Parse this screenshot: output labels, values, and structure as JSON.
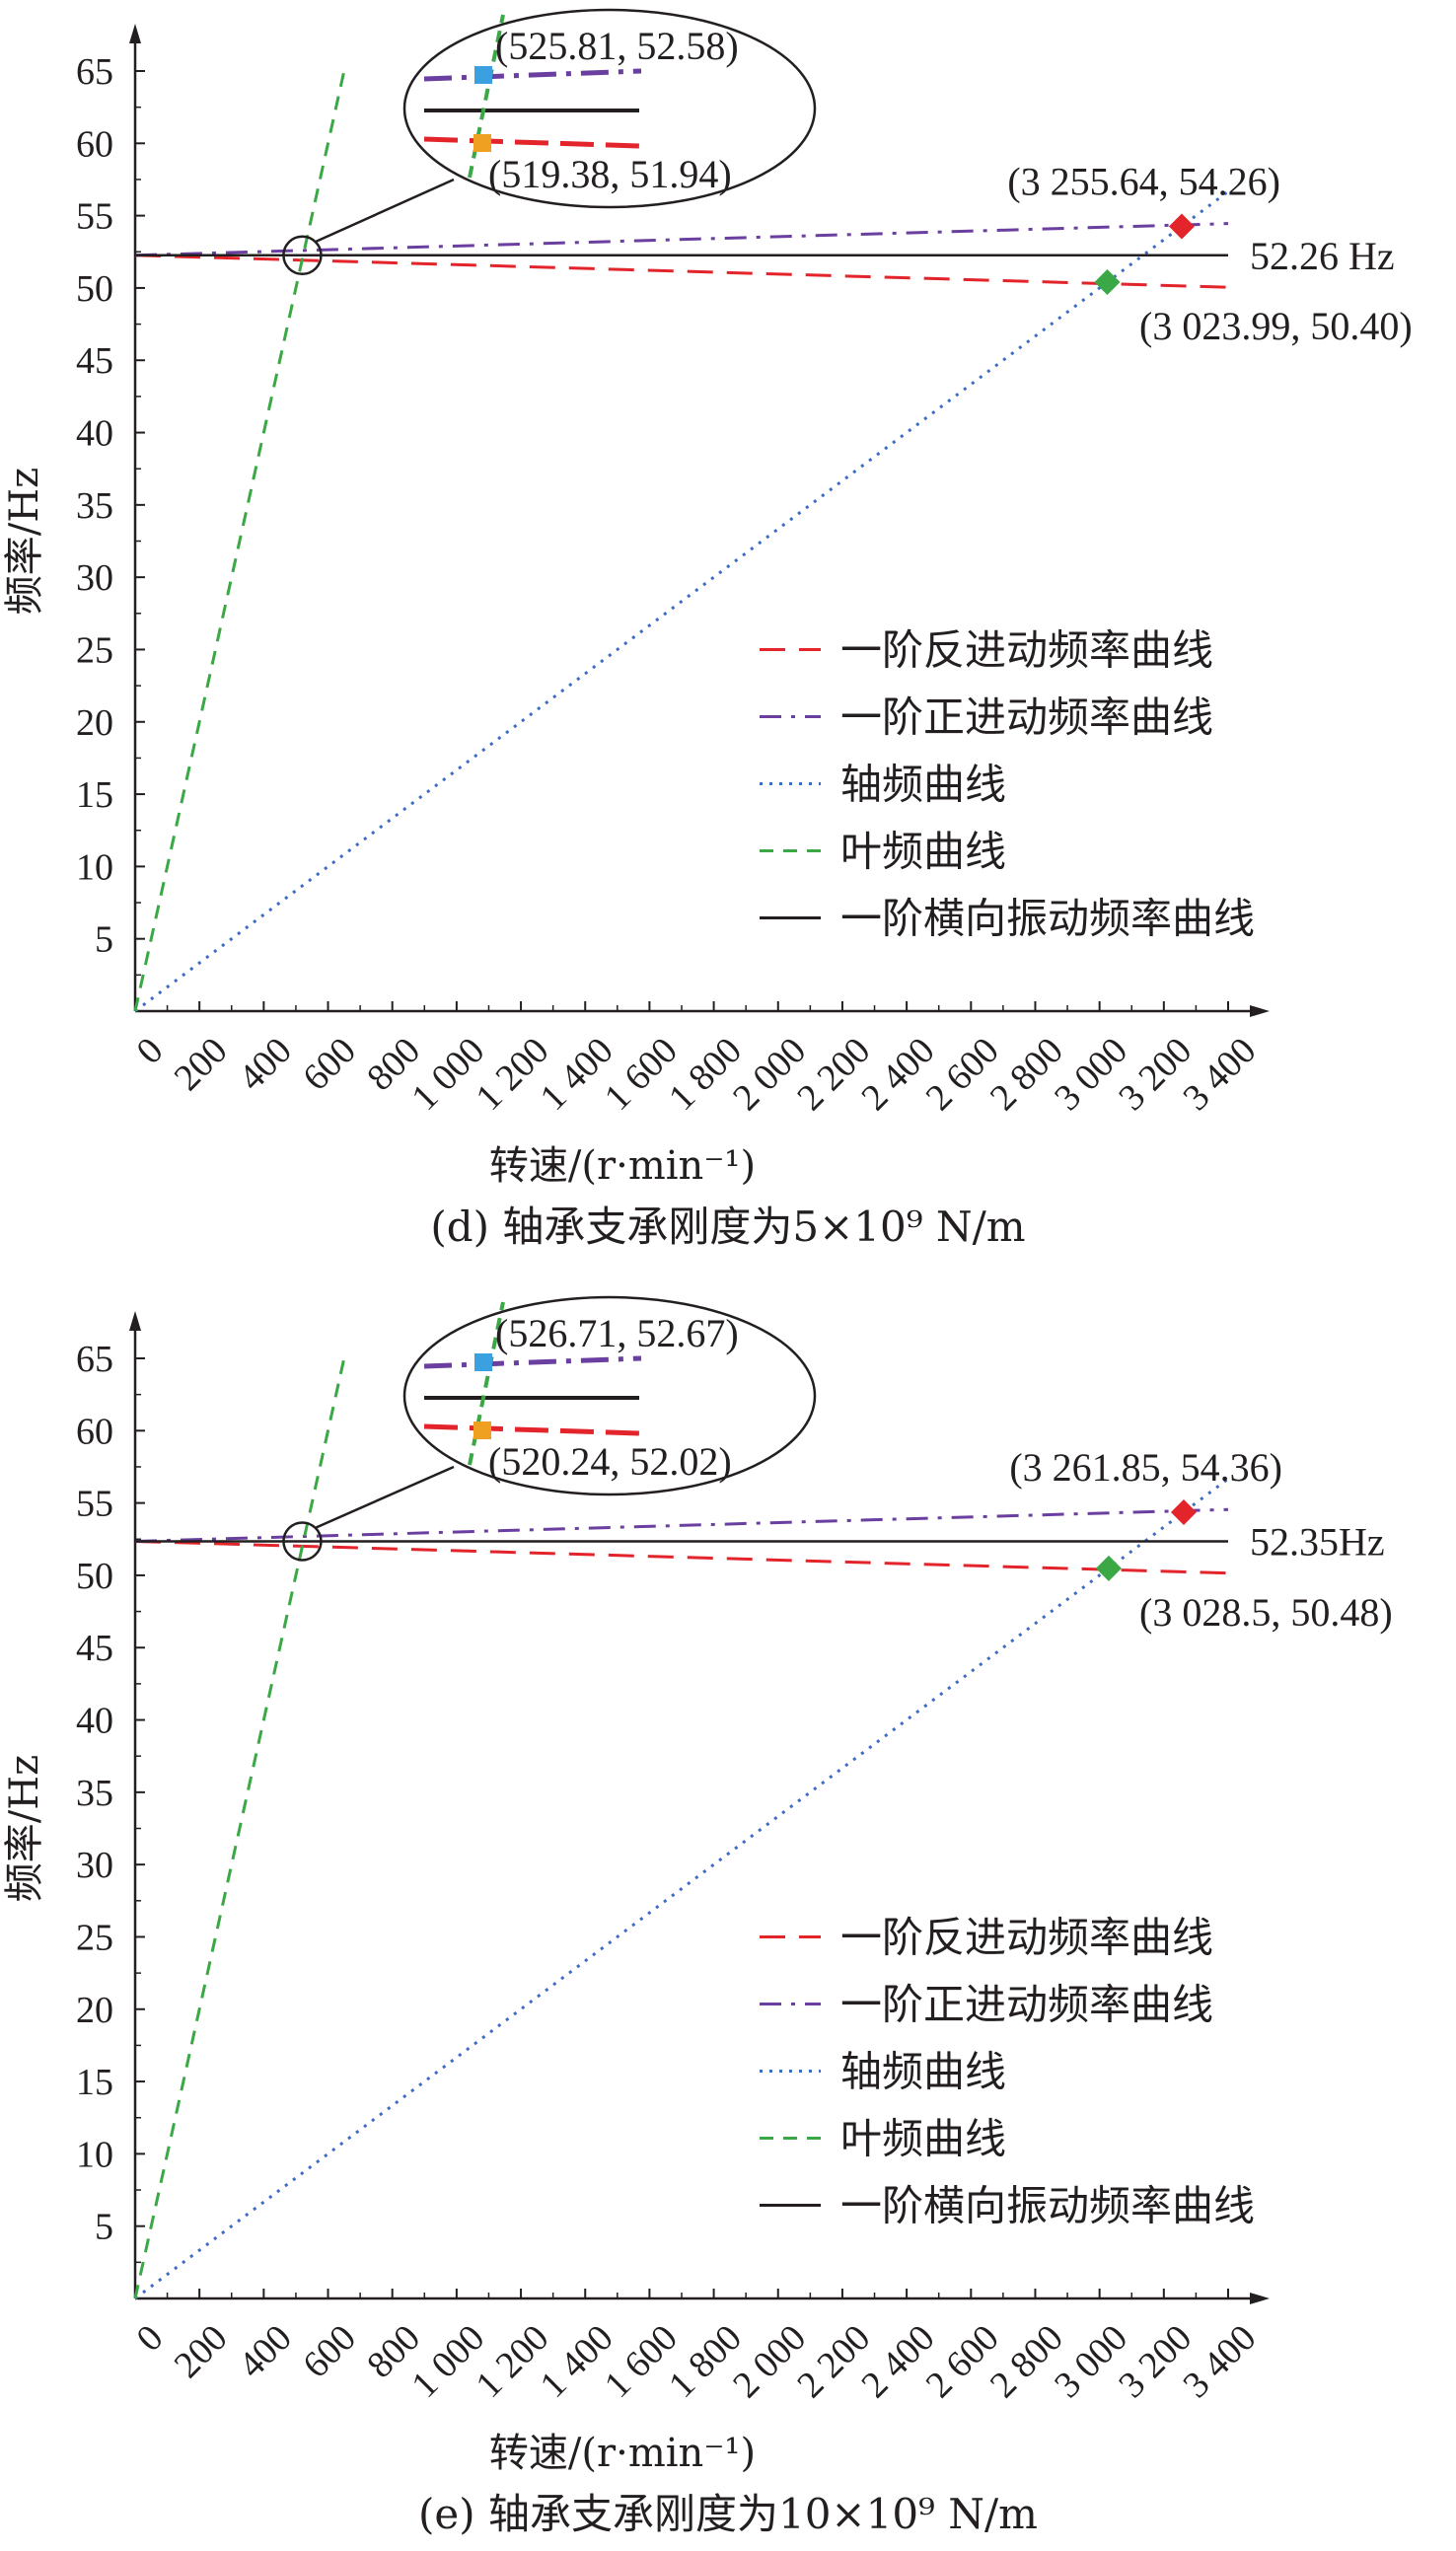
{
  "chart_data": [
    {
      "type": "line",
      "caption": "(d) 轴承支承刚度为5×10⁹ N/m",
      "xlabel": "转速/(r·min⁻¹)",
      "ylabel": "频率/Hz",
      "xlim": [
        0,
        3400
      ],
      "ylim": [
        0,
        65
      ],
      "xticks": [
        0,
        200,
        400,
        600,
        800,
        1000,
        1200,
        1400,
        1600,
        1800,
        2000,
        2200,
        2400,
        2600,
        2800,
        3000,
        3200,
        3400
      ],
      "xtick_labels": [
        "0",
        "200",
        "400",
        "600",
        "800",
        "1 000",
        "1 200",
        "1 400",
        "1 600",
        "1 800",
        "2 000",
        "2 200",
        "2 400",
        "2 600",
        "2 800",
        "3 000",
        "3 200",
        "3 400"
      ],
      "yticks": [
        5,
        10,
        15,
        20,
        25,
        30,
        35,
        40,
        45,
        50,
        55,
        60,
        65
      ],
      "series": [
        {
          "name": "一阶反进动频率曲线",
          "style": "dash-long",
          "color": "#e3242b",
          "x": [
            0,
            3400
          ],
          "y": [
            52.26,
            50.05
          ]
        },
        {
          "name": "一阶正进动频率曲线",
          "style": "dashdot",
          "color": "#6a3fa0",
          "x": [
            0,
            3400
          ],
          "y": [
            52.26,
            54.45
          ]
        },
        {
          "name": "轴频曲线",
          "style": "dotted",
          "color": "#3b6fc4",
          "x": [
            0,
            3400
          ],
          "y": [
            0,
            56.67
          ]
        },
        {
          "name": "叶频曲线",
          "style": "dashed",
          "color": "#3aa845",
          "x": [
            0,
            650
          ],
          "y": [
            0,
            65
          ]
        },
        {
          "name": "一阶横向振动频率曲线",
          "style": "solid",
          "color": "#231f20",
          "x": [
            0,
            3400
          ],
          "y": [
            52.26,
            52.26
          ]
        }
      ],
      "h_label": "52.26 Hz",
      "points": [
        {
          "x": 3255.64,
          "y": 54.26,
          "label": "(3 255.64, 54.26)",
          "color": "#e3242b"
        },
        {
          "x": 3023.99,
          "y": 50.4,
          "label": "(3 023.99, 50.40)",
          "color": "#3aa845"
        }
      ],
      "inset_points": [
        {
          "label": "(525.81, 52.58)",
          "color": "#3aa0e0"
        },
        {
          "label": "(519.38, 51.94)",
          "color": "#f0a020"
        }
      ],
      "legend_position": "center-right"
    },
    {
      "type": "line",
      "caption": "(e) 轴承支承刚度为10×10⁹ N/m",
      "xlabel": "转速/(r·min⁻¹)",
      "ylabel": "频率/Hz",
      "xlim": [
        0,
        3400
      ],
      "ylim": [
        0,
        65
      ],
      "xticks": [
        0,
        200,
        400,
        600,
        800,
        1000,
        1200,
        1400,
        1600,
        1800,
        2000,
        2200,
        2400,
        2600,
        2800,
        3000,
        3200,
        3400
      ],
      "xtick_labels": [
        "0",
        "200",
        "400",
        "600",
        "800",
        "1 000",
        "1 200",
        "1 400",
        "1 600",
        "1 800",
        "2 000",
        "2 200",
        "2 400",
        "2 600",
        "2 800",
        "3 000",
        "3 200",
        "3 400"
      ],
      "yticks": [
        5,
        10,
        15,
        20,
        25,
        30,
        35,
        40,
        45,
        50,
        55,
        60,
        65
      ],
      "series": [
        {
          "name": "一阶反进动频率曲线",
          "style": "dash-long",
          "color": "#e3242b",
          "x": [
            0,
            3400
          ],
          "y": [
            52.35,
            50.15
          ]
        },
        {
          "name": "一阶正进动频率曲线",
          "style": "dashdot",
          "color": "#6a3fa0",
          "x": [
            0,
            3400
          ],
          "y": [
            52.35,
            54.55
          ]
        },
        {
          "name": "轴频曲线",
          "style": "dotted",
          "color": "#3b6fc4",
          "x": [
            0,
            3400
          ],
          "y": [
            0,
            56.67
          ]
        },
        {
          "name": "叶频曲线",
          "style": "dashed",
          "color": "#3aa845",
          "x": [
            0,
            650
          ],
          "y": [
            0,
            65
          ]
        },
        {
          "name": "一阶横向振动频率曲线",
          "style": "solid",
          "color": "#231f20",
          "x": [
            0,
            3400
          ],
          "y": [
            52.35,
            52.35
          ]
        }
      ],
      "h_label": "52.35Hz",
      "points": [
        {
          "x": 3261.85,
          "y": 54.36,
          "label": "(3 261.85, 54.36)",
          "color": "#e3242b"
        },
        {
          "x": 3028.5,
          "y": 50.48,
          "label": "(3 028.5, 50.48)",
          "color": "#3aa845"
        }
      ],
      "inset_points": [
        {
          "label": "(526.71, 52.67)",
          "color": "#3aa0e0"
        },
        {
          "label": "(520.24, 52.02)",
          "color": "#f0a020"
        }
      ],
      "legend_position": "center-right"
    }
  ]
}
